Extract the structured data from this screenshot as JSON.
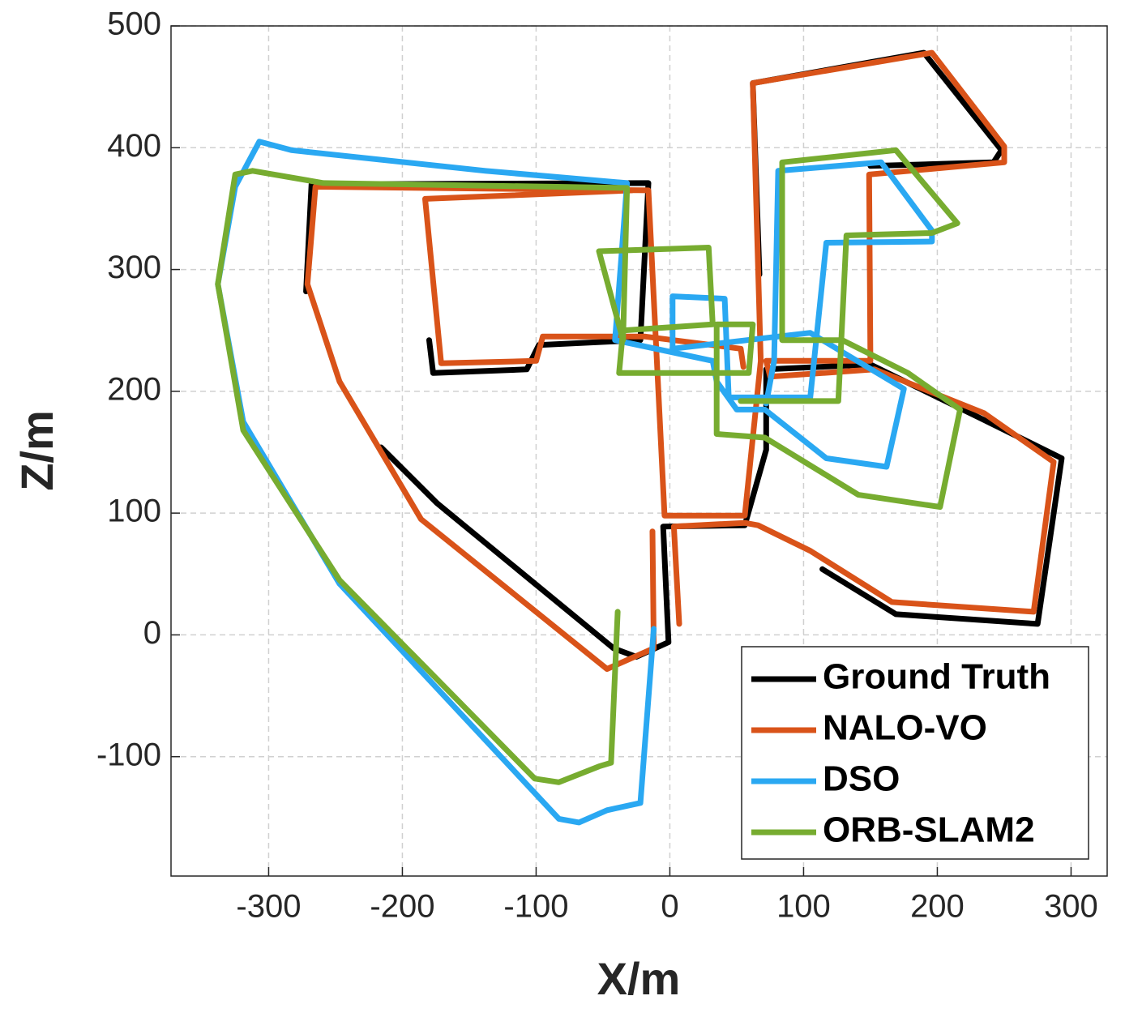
{
  "chart_data": {
    "type": "line",
    "x_label": "X/m",
    "y_label": "Z/m",
    "xlim": [
      -373,
      327
    ],
    "ylim": [
      -198,
      500
    ],
    "xticks": [
      -300,
      -200,
      -100,
      0,
      100,
      200,
      300
    ],
    "yticks": [
      -100,
      0,
      100,
      200,
      300,
      400,
      500
    ],
    "grid": true,
    "legend": "lower right",
    "series": [
      {
        "name": "Ground Truth",
        "color": "#000000",
        "x": [
          -216,
          -174,
          -42,
          -25,
          -1,
          -5,
          56,
          72,
          72,
          150,
          232,
          293,
          275,
          169,
          114,
          null,
          -180,
          -177,
          -107,
          -98,
          -22,
          -16,
          -268,
          -272,
          null,
          150,
          242,
          248,
          190,
          62,
          67
        ],
        "values": [
          154,
          108,
          -11,
          -18,
          -6,
          89,
          90,
          152,
          218,
          222,
          178,
          145,
          9,
          17,
          54,
          null,
          242,
          215,
          218,
          238,
          242,
          371,
          370,
          282,
          null,
          385,
          388,
          398,
          478,
          453,
          296
        ]
      },
      {
        "name": "NALO-VO",
        "color": "#d95319",
        "x": [
          7,
          3,
          56,
          66,
          105,
          166,
          272,
          287,
          235,
          153,
          75,
          72,
          150,
          149,
          250,
          250,
          196,
          62,
          68,
          56,
          -4,
          -16,
          -265,
          -271,
          -247,
          -186,
          -47,
          -12,
          -13,
          null,
          -28,
          -183,
          -171,
          -100,
          -95,
          -19,
          53,
          55
        ],
        "values": [
          9,
          89,
          92,
          90,
          69,
          27,
          19,
          142,
          182,
          218,
          212,
          225,
          225,
          378,
          388,
          401,
          478,
          453,
          225,
          98,
          98,
          365,
          368,
          288,
          208,
          95,
          -28,
          -11,
          85,
          null,
          365,
          358,
          223,
          225,
          245,
          245,
          235,
          220
        ]
      },
      {
        "name": "DSO",
        "color": "#2aa8f2",
        "x": [
          -12,
          -22,
          -47,
          -68,
          -83,
          -247,
          -319,
          -338,
          -325,
          -307,
          -283,
          -138,
          -32,
          -41,
          32,
          35,
          50,
          71,
          117,
          162,
          175,
          105,
          2,
          2,
          41,
          44,
          105,
          117,
          196,
          196,
          158,
          81,
          78,
          72
        ],
        "values": [
          5,
          -138,
          -144,
          -154,
          -151,
          42,
          175,
          288,
          368,
          405,
          398,
          381,
          371,
          242,
          225,
          208,
          185,
          185,
          145,
          138,
          202,
          248,
          235,
          278,
          276,
          195,
          195,
          322,
          323,
          332,
          388,
          381,
          225,
          190
        ]
      },
      {
        "name": "ORB-SLAM2",
        "color": "#77ac30",
        "x": [
          -39,
          -44,
          -53,
          -83,
          -101,
          -247,
          -319,
          -338,
          -325,
          -312,
          -259,
          -32,
          -35,
          -53,
          29,
          32,
          -35,
          -38,
          59,
          62,
          35,
          35,
          71,
          141,
          202,
          217,
          178,
          129,
          84,
          84,
          169,
          215,
          196,
          132,
          126,
          53
        ],
        "values": [
          19,
          -105,
          -108,
          -121,
          -118,
          45,
          168,
          288,
          378,
          381,
          371,
          367,
          242,
          315,
          318,
          255,
          250,
          215,
          215,
          255,
          255,
          165,
          162,
          115,
          105,
          185,
          215,
          242,
          242,
          388,
          398,
          338,
          330,
          328,
          192,
          192
        ]
      }
    ]
  }
}
